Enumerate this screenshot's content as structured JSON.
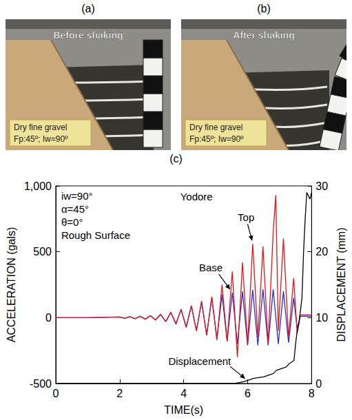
{
  "photos": [
    {
      "letter": "(a)",
      "caption": "Before shaking",
      "material": "Dry fine gravel",
      "parameters": "Fp:45º; Iw=90º"
    },
    {
      "letter": "(b)",
      "caption": "After shaking",
      "material": "Dry fine gravel",
      "parameters": "Fp:45º; Iw=90º"
    }
  ],
  "chart_letter": "(c)",
  "chart_data": {
    "type": "line",
    "title": "Yodore",
    "annotations": [
      "iw=90°",
      "α=45°",
      "θ=0°",
      "Rough Surface"
    ],
    "x_label": "TIME(s)",
    "y_label": "ACCELERATION (gals)",
    "y2_label": "DISPLACEMENT (mm)",
    "xlim": [
      0,
      8
    ],
    "xticks": [
      0,
      2,
      4,
      6,
      8
    ],
    "ylim": [
      -500,
      1000
    ],
    "yticks": [
      -500,
      0,
      500,
      1000
    ],
    "y2lim": [
      0,
      30
    ],
    "y2ticks": [
      0,
      10,
      20,
      30
    ],
    "grid": false,
    "series": [
      {
        "name": "Base",
        "color": "#1f2fd0",
        "x": [
          0,
          1,
          2.0,
          2.16,
          2.32,
          2.48,
          2.64,
          2.8,
          2.96,
          3.12,
          3.28,
          3.44,
          3.6,
          3.76,
          3.92,
          4.08,
          4.24,
          4.4,
          4.56,
          4.72,
          4.88,
          5.04,
          5.2,
          5.36,
          5.52,
          5.68,
          5.84,
          6.0,
          6.16,
          6.32,
          6.48,
          6.64,
          6.8,
          6.96,
          7.12,
          7.28,
          7.44,
          7.55,
          7.65,
          8
        ],
        "values": [
          0,
          0,
          5,
          -5,
          8,
          -8,
          10,
          -12,
          15,
          -18,
          25,
          -30,
          40,
          -50,
          65,
          -75,
          90,
          -100,
          120,
          -130,
          150,
          -160,
          175,
          -180,
          190,
          -200,
          200,
          -210,
          210,
          -210,
          215,
          -210,
          215,
          -200,
          200,
          -190,
          150,
          -80,
          10,
          10
        ]
      },
      {
        "name": "Top",
        "color": "#ee1111",
        "x": [
          0,
          1,
          2.0,
          2.16,
          2.32,
          2.48,
          2.64,
          2.8,
          2.96,
          3.12,
          3.28,
          3.44,
          3.6,
          3.76,
          3.92,
          4.08,
          4.24,
          4.4,
          4.56,
          4.72,
          4.88,
          5.04,
          5.2,
          5.36,
          5.52,
          5.68,
          5.84,
          6.0,
          6.16,
          6.32,
          6.48,
          6.64,
          6.8,
          6.88,
          6.96,
          7.12,
          7.28,
          7.44,
          7.55,
          7.65,
          8
        ],
        "values": [
          0,
          0,
          5,
          -5,
          8,
          -8,
          10,
          -12,
          15,
          -18,
          25,
          -30,
          40,
          -45,
          60,
          -70,
          90,
          -100,
          125,
          -135,
          160,
          -170,
          250,
          -180,
          350,
          -300,
          420,
          -200,
          560,
          -150,
          540,
          -200,
          650,
          930,
          -100,
          600,
          -150,
          300,
          -120,
          20,
          20
        ]
      },
      {
        "name": "Displacement",
        "color": "#000000",
        "axis": "y2",
        "x": [
          0,
          5.6,
          5.9,
          6.2,
          6.5,
          6.8,
          6.9,
          7.2,
          7.3,
          7.45,
          7.5,
          7.55,
          7.6,
          7.7,
          7.75,
          7.8,
          7.85,
          7.95,
          8
        ],
        "values": [
          0,
          0,
          0.3,
          0.8,
          1,
          1.5,
          2,
          2.5,
          3,
          3.5,
          6,
          8,
          9,
          13,
          20,
          25,
          29,
          28,
          29
        ]
      }
    ]
  }
}
